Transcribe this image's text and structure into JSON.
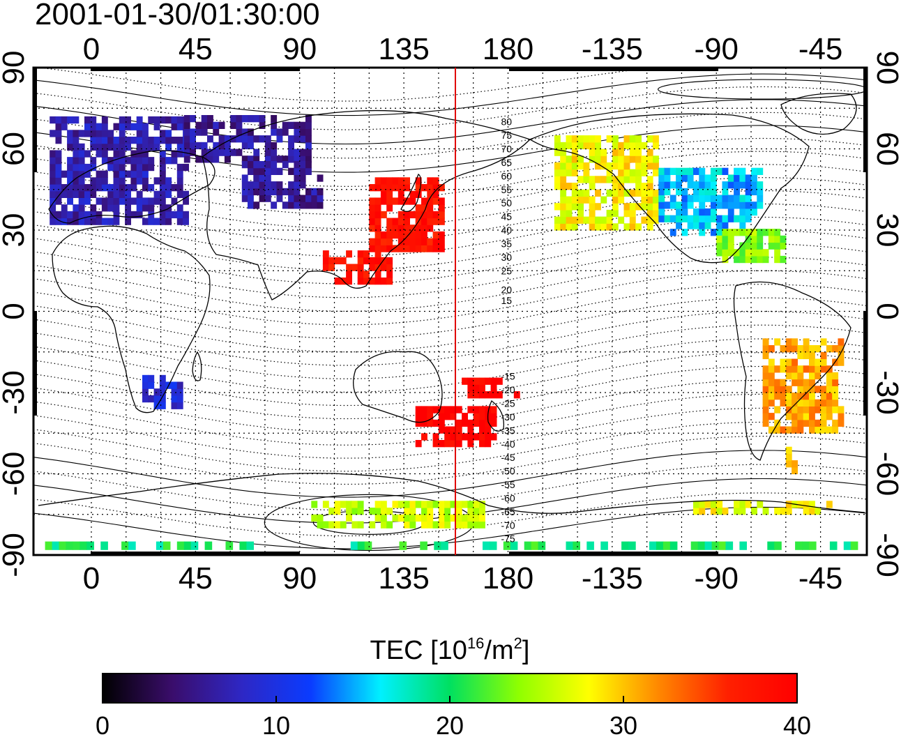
{
  "title": "2001-01-30/01:30:00",
  "lon_ticks": [
    "0",
    "45",
    "90",
    "135",
    "180",
    "-135",
    "-90",
    "-45"
  ],
  "lat_ticks": [
    "90",
    "60",
    "30",
    "0",
    "-30",
    "-60",
    "-90"
  ],
  "contour_labels_north": [
    "80",
    "75",
    "70",
    "65",
    "60",
    "55",
    "50",
    "45",
    "40",
    "35",
    "30",
    "25",
    "20",
    "15"
  ],
  "contour_labels_south": [
    "-15",
    "-20",
    "-25",
    "-30",
    "-35",
    "-40",
    "-45",
    "-50",
    "-55",
    "-60",
    "-65",
    "-70",
    "-75"
  ],
  "colorbar": {
    "title": "TEC  [10",
    "title_sup1": "16",
    "title_mid": "/m",
    "title_sup2": "2",
    "title_end": "]",
    "ticks": [
      "0",
      "10",
      "20",
      "30",
      "40"
    ],
    "colors": [
      "#000000",
      "#3a0d6b",
      "#2e27c4",
      "#0a3cff",
      "#00f0ff",
      "#00e060",
      "#90ff00",
      "#ffff00",
      "#ff8800",
      "#ff2000",
      "#ff0000"
    ]
  },
  "map_data": {
    "type": "heatmap",
    "quantity": "TEC",
    "units": "10^16/m^2",
    "vmin": 0,
    "vmax": 40,
    "lon_range": [
      -25,
      335
    ],
    "lat_range": [
      -90,
      90
    ],
    "terminator_lon": 157,
    "regions": [
      {
        "lon": [
          -18,
          40
        ],
        "lat": [
          32,
          72
        ],
        "value": 7
      },
      {
        "lon": [
          22,
          38
        ],
        "lat": [
          -36,
          -24
        ],
        "value": 9
      },
      {
        "lon": [
          40,
          95
        ],
        "lat": [
          55,
          72
        ],
        "value": 6
      },
      {
        "lon": [
          65,
          100
        ],
        "lat": [
          38,
          55
        ],
        "value": 6
      },
      {
        "lon": [
          120,
          152
        ],
        "lat": [
          22,
          48
        ],
        "value": 38
      },
      {
        "lon": [
          100,
          128
        ],
        "lat": [
          10,
          22
        ],
        "value": 38
      },
      {
        "lon": [
          140,
          175
        ],
        "lat": [
          -50,
          -35
        ],
        "value": 40
      },
      {
        "lon": [
          160,
          185
        ],
        "lat": [
          -32,
          -25
        ],
        "value": 40
      },
      {
        "lon": [
          200,
          245
        ],
        "lat": [
          30,
          65
        ],
        "value": 28
      },
      {
        "lon": [
          245,
          290
        ],
        "lat": [
          28,
          52
        ],
        "value": 15
      },
      {
        "lon": [
          270,
          300
        ],
        "lat": [
          18,
          30
        ],
        "value": 24
      },
      {
        "lon": [
          290,
          325
        ],
        "lat": [
          -45,
          -10
        ],
        "value": 31
      },
      {
        "lon": [
          300,
          305
        ],
        "lat": [
          -60,
          -52
        ],
        "value": 30
      },
      {
        "lon": [
          -20,
          330
        ],
        "lat": [
          -88,
          -85
        ],
        "value": 20
      },
      {
        "lon": [
          95,
          170
        ],
        "lat": [
          -80,
          -70
        ],
        "value": 26
      },
      {
        "lon": [
          260,
          320
        ],
        "lat": [
          -75,
          -70
        ],
        "value": 28
      }
    ]
  }
}
